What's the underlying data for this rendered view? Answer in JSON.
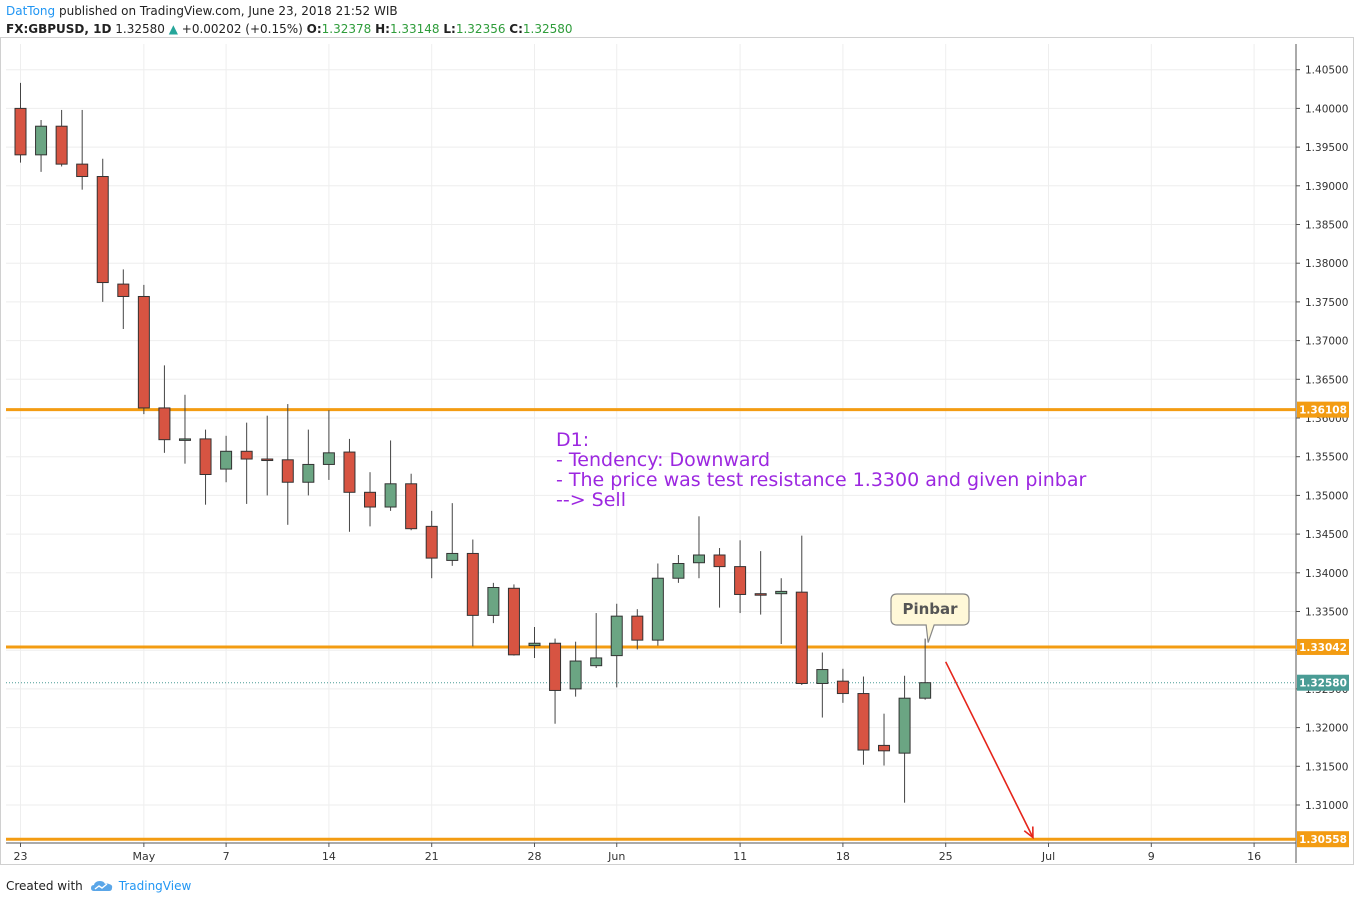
{
  "header": {
    "author": "DatTong",
    "published": " published on TradingView.com, June 23, 2018 21:52 WIB",
    "symbol": "FX:GBPUSD, 1D",
    "last": "1.32580",
    "change_arrow": "▲",
    "change": "+0.00202 (+0.15%)",
    "o_label": "O:",
    "o": "1.32378",
    "h_label": "H:",
    "h": "1.33148",
    "l_label": "L:",
    "l": "1.32356",
    "c_label": "C:",
    "c": "1.32580"
  },
  "annotation": {
    "lines": [
      "D1:",
      "- Tendency: Downward",
      "- The price was test resistance 1.3300 and given pinbar",
      "--> Sell"
    ]
  },
  "callout": {
    "text": "Pinbar"
  },
  "footer": {
    "created_with": "Created with",
    "brand": "TradingView",
    "brand_icon": "tradingview-cloud-icon"
  },
  "colors": {
    "up": "#6ba583",
    "down": "#d75442",
    "level": "#f39c12",
    "grid": "#eeeeee",
    "arrow": "#e5251b",
    "annotation": "#9c27e0",
    "last_price": "#4a9c95"
  },
  "chart_data": {
    "type": "candlestick",
    "symbol": "FX:GBPUSD",
    "interval": "1D",
    "ylim": [
      1.304,
      1.409
    ],
    "y_ticks": [
      "1.40500",
      "1.40000",
      "1.39500",
      "1.39000",
      "1.38500",
      "1.38000",
      "1.37500",
      "1.37000",
      "1.36500",
      "1.36000",
      "1.35500",
      "1.35000",
      "1.34500",
      "1.34000",
      "1.33500",
      "1.33000",
      "1.32500",
      "1.32000",
      "1.31500",
      "1.31000"
    ],
    "x_ticks": [
      {
        "label": "23",
        "index": 0
      },
      {
        "label": "May",
        "index": 6
      },
      {
        "label": "7",
        "index": 10
      },
      {
        "label": "14",
        "index": 15
      },
      {
        "label": "21",
        "index": 20
      },
      {
        "label": "28",
        "index": 25
      },
      {
        "label": "Jun",
        "index": 29
      },
      {
        "label": "11",
        "index": 35
      },
      {
        "label": "18",
        "index": 40
      },
      {
        "label": "25",
        "index": 45
      },
      {
        "label": "Jul",
        "index": 50
      },
      {
        "label": "9",
        "index": 55
      },
      {
        "label": "16",
        "index": 60
      }
    ],
    "candles": [
      {
        "o": 1.4,
        "h": 1.4033,
        "l": 1.393,
        "c": 1.394
      },
      {
        "o": 1.394,
        "h": 1.3985,
        "l": 1.3918,
        "c": 1.3977
      },
      {
        "o": 1.3977,
        "h": 1.3998,
        "l": 1.3925,
        "c": 1.3928
      },
      {
        "o": 1.3928,
        "h": 1.3998,
        "l": 1.3895,
        "c": 1.3912
      },
      {
        "o": 1.3912,
        "h": 1.3935,
        "l": 1.375,
        "c": 1.3775
      },
      {
        "o": 1.3773,
        "h": 1.3792,
        "l": 1.3715,
        "c": 1.3757
      },
      {
        "o": 1.3757,
        "h": 1.3772,
        "l": 1.3605,
        "c": 1.3613
      },
      {
        "o": 1.3613,
        "h": 1.3668,
        "l": 1.3555,
        "c": 1.3572
      },
      {
        "o": 1.3572,
        "h": 1.363,
        "l": 1.3541,
        "c": 1.3573
      },
      {
        "o": 1.3573,
        "h": 1.3585,
        "l": 1.3488,
        "c": 1.3527
      },
      {
        "o": 1.3534,
        "h": 1.3577,
        "l": 1.3517,
        "c": 1.3557
      },
      {
        "o": 1.3557,
        "h": 1.3594,
        "l": 1.3489,
        "c": 1.3547
      },
      {
        "o": 1.3547,
        "h": 1.3603,
        "l": 1.35,
        "c": 1.3546
      },
      {
        "o": 1.3546,
        "h": 1.3618,
        "l": 1.3462,
        "c": 1.3517
      },
      {
        "o": 1.3517,
        "h": 1.3585,
        "l": 1.35,
        "c": 1.354
      },
      {
        "o": 1.354,
        "h": 1.361,
        "l": 1.352,
        "c": 1.3555
      },
      {
        "o": 1.3556,
        "h": 1.3573,
        "l": 1.3453,
        "c": 1.3504
      },
      {
        "o": 1.3504,
        "h": 1.353,
        "l": 1.346,
        "c": 1.3485
      },
      {
        "o": 1.3485,
        "h": 1.3571,
        "l": 1.348,
        "c": 1.3515
      },
      {
        "o": 1.3515,
        "h": 1.3528,
        "l": 1.3455,
        "c": 1.3457
      },
      {
        "o": 1.346,
        "h": 1.348,
        "l": 1.3393,
        "c": 1.3419
      },
      {
        "o": 1.3416,
        "h": 1.349,
        "l": 1.3409,
        "c": 1.3425
      },
      {
        "o": 1.3425,
        "h": 1.3443,
        "l": 1.3305,
        "c": 1.3345
      },
      {
        "o": 1.3345,
        "h": 1.3387,
        "l": 1.3335,
        "c": 1.3381
      },
      {
        "o": 1.338,
        "h": 1.3385,
        "l": 1.3293,
        "c": 1.3294
      },
      {
        "o": 1.3306,
        "h": 1.333,
        "l": 1.329,
        "c": 1.3309
      },
      {
        "o": 1.3309,
        "h": 1.3315,
        "l": 1.3205,
        "c": 1.3248
      },
      {
        "o": 1.325,
        "h": 1.3311,
        "l": 1.324,
        "c": 1.3286
      },
      {
        "o": 1.328,
        "h": 1.3348,
        "l": 1.3277,
        "c": 1.329
      },
      {
        "o": 1.3293,
        "h": 1.336,
        "l": 1.3252,
        "c": 1.3344
      },
      {
        "o": 1.3344,
        "h": 1.3353,
        "l": 1.3301,
        "c": 1.3313
      },
      {
        "o": 1.3313,
        "h": 1.3412,
        "l": 1.3306,
        "c": 1.3393
      },
      {
        "o": 1.3393,
        "h": 1.3423,
        "l": 1.3387,
        "c": 1.3412
      },
      {
        "o": 1.3413,
        "h": 1.3473,
        "l": 1.3393,
        "c": 1.3423
      },
      {
        "o": 1.3423,
        "h": 1.3432,
        "l": 1.3355,
        "c": 1.3408
      },
      {
        "o": 1.3408,
        "h": 1.3442,
        "l": 1.3348,
        "c": 1.3372
      },
      {
        "o": 1.3373,
        "h": 1.3428,
        "l": 1.3346,
        "c": 1.3372
      },
      {
        "o": 1.3373,
        "h": 1.3393,
        "l": 1.3308,
        "c": 1.3376
      },
      {
        "o": 1.3375,
        "h": 1.3448,
        "l": 1.3255,
        "c": 1.3257
      },
      {
        "o": 1.3257,
        "h": 1.3297,
        "l": 1.3213,
        "c": 1.3275
      },
      {
        "o": 1.326,
        "h": 1.3276,
        "l": 1.3232,
        "c": 1.3244
      },
      {
        "o": 1.3244,
        "h": 1.3266,
        "l": 1.3152,
        "c": 1.3171
      },
      {
        "o": 1.3177,
        "h": 1.3218,
        "l": 1.3151,
        "c": 1.317
      },
      {
        "o": 1.3167,
        "h": 1.3267,
        "l": 1.3103,
        "c": 1.3238
      },
      {
        "o": 1.3238,
        "h": 1.3315,
        "l": 1.3236,
        "c": 1.3258
      }
    ],
    "levels": [
      {
        "value": 1.36108,
        "label": "1.36108"
      },
      {
        "value": 1.33042,
        "label": "1.33042"
      },
      {
        "value": 1.30558,
        "label": "1.30558"
      }
    ],
    "last_price": {
      "value": 1.3258,
      "label": "1.32580"
    },
    "projection_arrow": {
      "from": {
        "index": 45,
        "price": 1.3285
      },
      "to": {
        "index": 49,
        "price": 1.3058
      }
    },
    "callout_target": {
      "index": 44,
      "price": 1.3315
    }
  }
}
